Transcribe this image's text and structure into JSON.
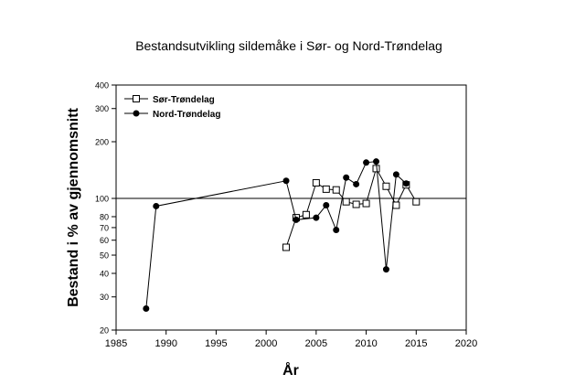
{
  "chart_data": {
    "type": "line",
    "title": "Bestandsutvikling sildemåke i Sør- og Nord-Trøndelag",
    "xlabel": "År",
    "ylabel": "Bestand i % av gjennomsnitt",
    "xlim": [
      1985,
      2020
    ],
    "ylim": [
      20,
      400
    ],
    "y_scale": "log",
    "x_ticks": [
      1985,
      1990,
      1995,
      2000,
      2005,
      2010,
      2015,
      2020
    ],
    "y_ticks": [
      20,
      30,
      40,
      50,
      60,
      70,
      80,
      100,
      200,
      300,
      400
    ],
    "reference_line": 100,
    "grid": false,
    "legend_position": "top-left",
    "series": [
      {
        "name": "Sør-Trøndelag",
        "marker": "open-square",
        "x": [
          2002,
          2003,
          2004,
          2005,
          2006,
          2007,
          2008,
          2009,
          2010,
          2011,
          2012,
          2013,
          2014,
          2015
        ],
        "y": [
          55,
          79,
          82,
          121,
          112,
          111,
          96,
          93,
          94,
          144,
          116,
          92,
          118,
          96
        ]
      },
      {
        "name": "Nord-Trøndelag",
        "marker": "filled-circle",
        "x": [
          1988,
          1989,
          2002,
          2003,
          2005,
          2006,
          2007,
          2008,
          2009,
          2010,
          2011,
          2012,
          2013,
          2014
        ],
        "y": [
          26,
          91,
          124,
          77,
          79,
          92,
          68,
          129,
          119,
          155,
          157,
          42,
          134,
          120
        ]
      }
    ]
  }
}
